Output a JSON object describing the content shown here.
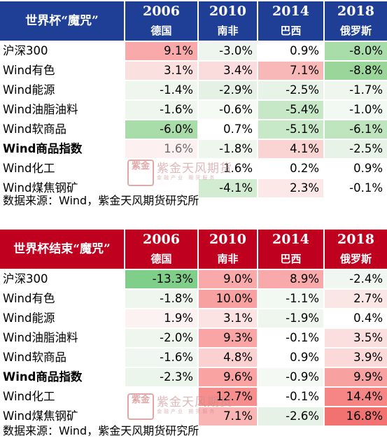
{
  "table1": {
    "corner_title": "世界杯“魔咒”",
    "columns": [
      {
        "year": "2006",
        "country": "德国"
      },
      {
        "year": "2010",
        "country": "南非"
      },
      {
        "year": "2014",
        "country": "巴西"
      },
      {
        "year": "2018",
        "country": "俄罗斯"
      }
    ],
    "rows": [
      {
        "label": "沪深300",
        "bold": false,
        "values": [
          "9.1%",
          "-3.0%",
          "0.9%",
          "-8.0%"
        ],
        "colors": [
          "#f9a9a9",
          "#eef5ee",
          "#ffffff",
          "#a8dca8"
        ]
      },
      {
        "label": "Wind有色",
        "bold": false,
        "values": [
          "3.1%",
          "3.4%",
          "7.1%",
          "-8.8%"
        ],
        "colors": [
          "#fbe0e0",
          "#fbdcdc",
          "#f8b8b8",
          "#9ad69a"
        ]
      },
      {
        "label": "Wind能源",
        "bold": false,
        "values": [
          "-1.4%",
          "-2.9%",
          "-2.5%",
          "-1.7%"
        ],
        "colors": [
          "#eef6ee",
          "#e4f1e4",
          "#e8f3e8",
          "#eef6ee"
        ]
      },
      {
        "label": "Wind油脂油料",
        "bold": false,
        "values": [
          "-1.6%",
          "-0.6%",
          "-5.4%",
          "-1.0%"
        ],
        "colors": [
          "#eef6ee",
          "#f5faf5",
          "#c6e8c6",
          "#f2f8f2"
        ]
      },
      {
        "label": "Wind软商品",
        "bold": false,
        "values": [
          "-6.0%",
          "0.7%",
          "-5.1%",
          "-6.1%"
        ],
        "colors": [
          "#a8dca8",
          "#ffffff",
          "#c8e9c8",
          "#bfe5bf"
        ]
      },
      {
        "label": "Wind商品指数",
        "bold": true,
        "values": [
          "1.6%",
          "-1.8%",
          "4.1%",
          "-2.5%"
        ],
        "colors": [
          "#fdf0f0",
          "#eef6ee",
          "#fad3d3",
          "#e8f3e8"
        ]
      },
      {
        "label": "Wind化工",
        "bold": false,
        "values": [
          "",
          "1.6%",
          "0.2%",
          "0.9%"
        ],
        "colors": [
          "#ffffff",
          "#ffffff",
          "#ffffff",
          "#ffffff"
        ]
      },
      {
        "label": "Wind煤焦钢矿",
        "bold": false,
        "values": [
          "",
          "-4.1%",
          "2.3%",
          "-0.1%"
        ],
        "colors": [
          "#ffffff",
          "#d2ecd2",
          "#fde8e8",
          "#ffffff"
        ]
      }
    ],
    "source": "数据来源：Wind，紫金天风期货研究所"
  },
  "table2": {
    "corner_title": "世界杯结束“魔咒”",
    "columns": [
      {
        "year": "2006",
        "country": "德国"
      },
      {
        "year": "2010",
        "country": "南非"
      },
      {
        "year": "2014",
        "country": "巴西"
      },
      {
        "year": "2018",
        "country": "俄罗斯"
      }
    ],
    "rows": [
      {
        "label": "沪深300",
        "bold": false,
        "values": [
          "-13.3%",
          "9.0%",
          "8.9%",
          "-2.4%"
        ],
        "colors": [
          "#7fcf8a",
          "#f9a9a9",
          "#f9a9a9",
          "#f0f7f0"
        ]
      },
      {
        "label": "Wind有色",
        "bold": false,
        "values": [
          "-1.8%",
          "10.0%",
          "-1.1%",
          "2.7%"
        ],
        "colors": [
          "#eef6ee",
          "#f8a1a1",
          "#f2f8f2",
          "#fbe6e6"
        ]
      },
      {
        "label": "Wind能源",
        "bold": false,
        "values": [
          "1.9%",
          "3.1%",
          "-1.9%",
          "0.4%"
        ],
        "colors": [
          "#fdf2f2",
          "#fbe3e3",
          "#eef6ee",
          "#ffffff"
        ]
      },
      {
        "label": "Wind油脂油料",
        "bold": false,
        "values": [
          "-2.0%",
          "9.3%",
          "-0.1%",
          "3.5%"
        ],
        "colors": [
          "#eef6ee",
          "#f9a5a5",
          "#ffffff",
          "#fbdede"
        ]
      },
      {
        "label": "Wind软商品",
        "bold": false,
        "values": [
          "-1.6%",
          "4.8%",
          "0.9%",
          "3.9%"
        ],
        "colors": [
          "#f0f7f0",
          "#fad0d0",
          "#ffffff",
          "#fbd9d9"
        ]
      },
      {
        "label": "Wind商品指数",
        "bold": true,
        "values": [
          "-2.3%",
          "9.6%",
          "-0.9%",
          "9.9%"
        ],
        "colors": [
          "#ebf5eb",
          "#f9a3a3",
          "#f4f9f4",
          "#f8a1a1"
        ]
      },
      {
        "label": "Wind化工",
        "bold": false,
        "values": [
          "",
          "12.7%",
          "-0.1%",
          "14.4%"
        ],
        "colors": [
          "#ffffff",
          "#f78e8e",
          "#ffffff",
          "#f68686"
        ]
      },
      {
        "label": "Wind煤焦钢矿",
        "bold": false,
        "values": [
          "",
          "7.1%",
          "-2.6%",
          "16.8%"
        ],
        "colors": [
          "#ffffff",
          "#f9b4b4",
          "#e6f2e6",
          "#f27272"
        ]
      }
    ],
    "source": "数据来源：Wind，紫金天风期货研究所"
  },
  "watermark": {
    "seal": "紫金",
    "text": "紫金天风期货",
    "sub": "金融产业 期货服务"
  }
}
